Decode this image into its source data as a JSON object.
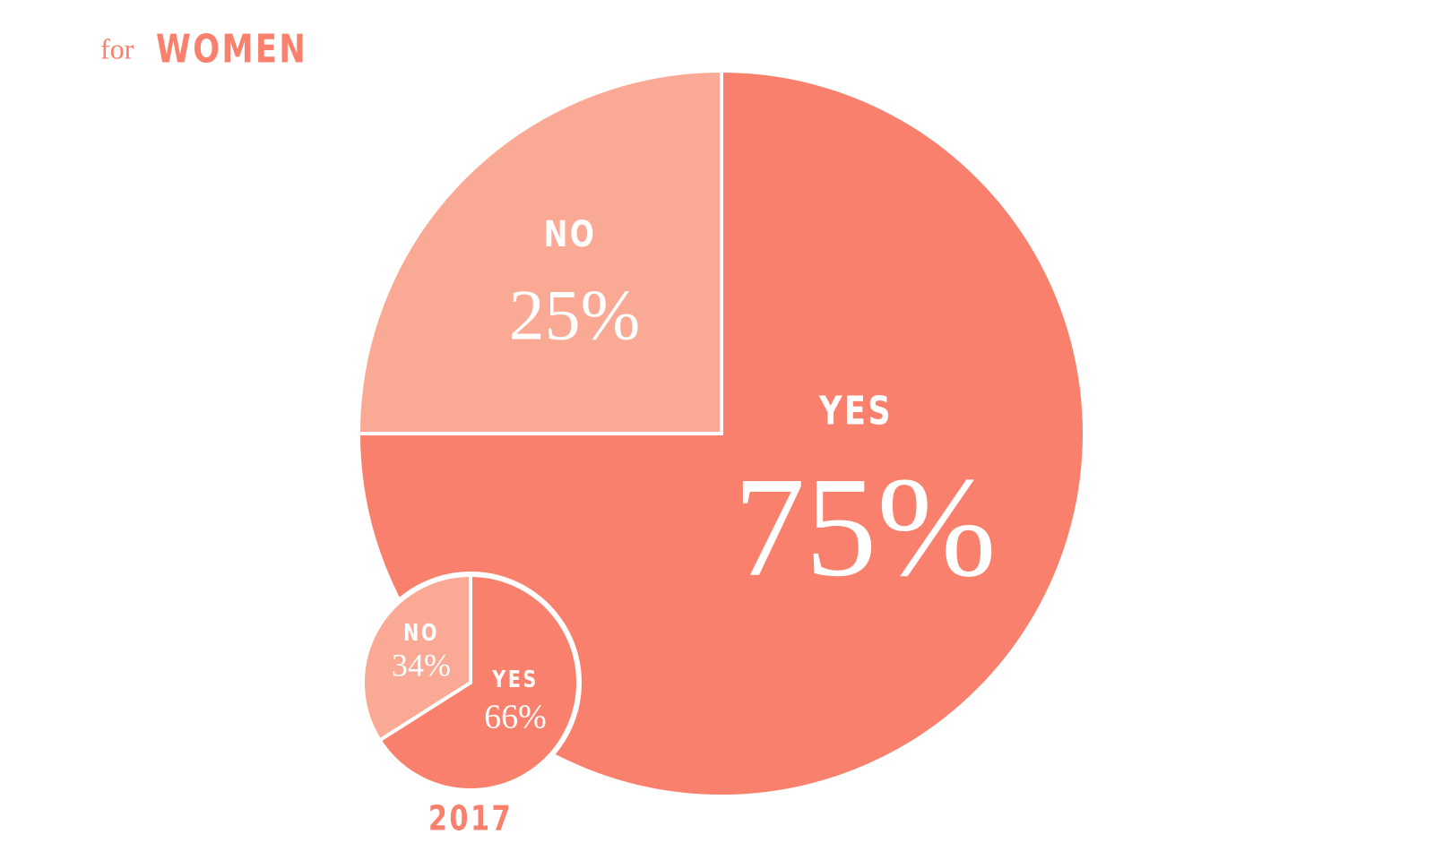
{
  "header": {
    "prefix": "for",
    "title": "WOMEN"
  },
  "chart_data": [
    {
      "type": "pie",
      "categories": [
        "YES",
        "NO"
      ],
      "values": [
        75,
        25
      ],
      "value_labels": [
        "75%",
        "25%"
      ],
      "colors": [
        "#f8806c",
        "#f9a994"
      ]
    },
    {
      "type": "pie",
      "title": "2017",
      "categories": [
        "YES",
        "NO"
      ],
      "values": [
        66,
        34
      ],
      "value_labels": [
        "66%",
        "34%"
      ],
      "colors": [
        "#f8806c",
        "#f9a994"
      ]
    }
  ]
}
